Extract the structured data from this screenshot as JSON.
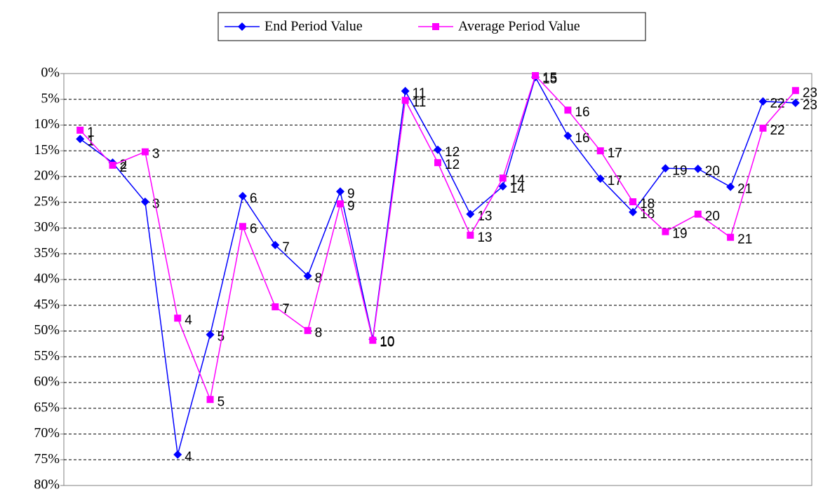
{
  "chart_data": {
    "type": "line",
    "categories": [
      null,
      null,
      null,
      null,
      null,
      null,
      null,
      null,
      null,
      null,
      null,
      null,
      null,
      null,
      null,
      null,
      null,
      null,
      null,
      null,
      null,
      null,
      null
    ],
    "point_labels": [
      "1",
      "2",
      "3",
      "4",
      "5",
      "6",
      "7",
      "8",
      "9",
      "10",
      "11",
      "12",
      "13",
      "14",
      "15",
      "16",
      "17",
      "18",
      "19",
      "20",
      "21",
      "22",
      "23"
    ],
    "series": [
      {
        "name": "End Period Value",
        "color": "#0000ff",
        "marker": "diamond",
        "values": [
          12.7,
          17.3,
          24.9,
          74.0,
          50.7,
          23.8,
          33.3,
          39.3,
          22.9,
          51.6,
          3.4,
          14.8,
          27.3,
          21.9,
          0.7,
          12.1,
          20.4,
          26.9,
          18.4,
          18.5,
          22.0,
          5.4,
          5.7
        ]
      },
      {
        "name": "Average Period Value",
        "color": "#ff00ff",
        "marker": "square",
        "values": [
          11.0,
          17.8,
          15.2,
          47.5,
          63.3,
          29.7,
          45.3,
          49.9,
          25.3,
          51.8,
          5.2,
          17.3,
          31.4,
          20.3,
          0.4,
          7.1,
          15.0,
          24.9,
          30.7,
          27.3,
          31.8,
          10.6,
          3.3
        ]
      }
    ],
    "ylim": [
      0,
      80
    ],
    "y_reversed": true,
    "yticks": [
      {
        "value": 0,
        "label": "0%"
      },
      {
        "value": 5,
        "label": "5%"
      },
      {
        "value": 10,
        "label": "10%"
      },
      {
        "value": 15,
        "label": "15%"
      },
      {
        "value": 20,
        "label": "20%"
      },
      {
        "value": 25,
        "label": "25%"
      },
      {
        "value": 30,
        "label": "30%"
      },
      {
        "value": 35,
        "label": "35%"
      },
      {
        "value": 40,
        "label": "40%"
      },
      {
        "value": 45,
        "label": "45%"
      },
      {
        "value": 50,
        "label": "50%"
      },
      {
        "value": 55,
        "label": "55%"
      },
      {
        "value": 60,
        "label": "60%"
      },
      {
        "value": 65,
        "label": "65%"
      },
      {
        "value": 70,
        "label": "70%"
      },
      {
        "value": 75,
        "label": "75%"
      },
      {
        "value": 80,
        "label": "80%"
      }
    ],
    "grid": true,
    "legend": "top"
  }
}
